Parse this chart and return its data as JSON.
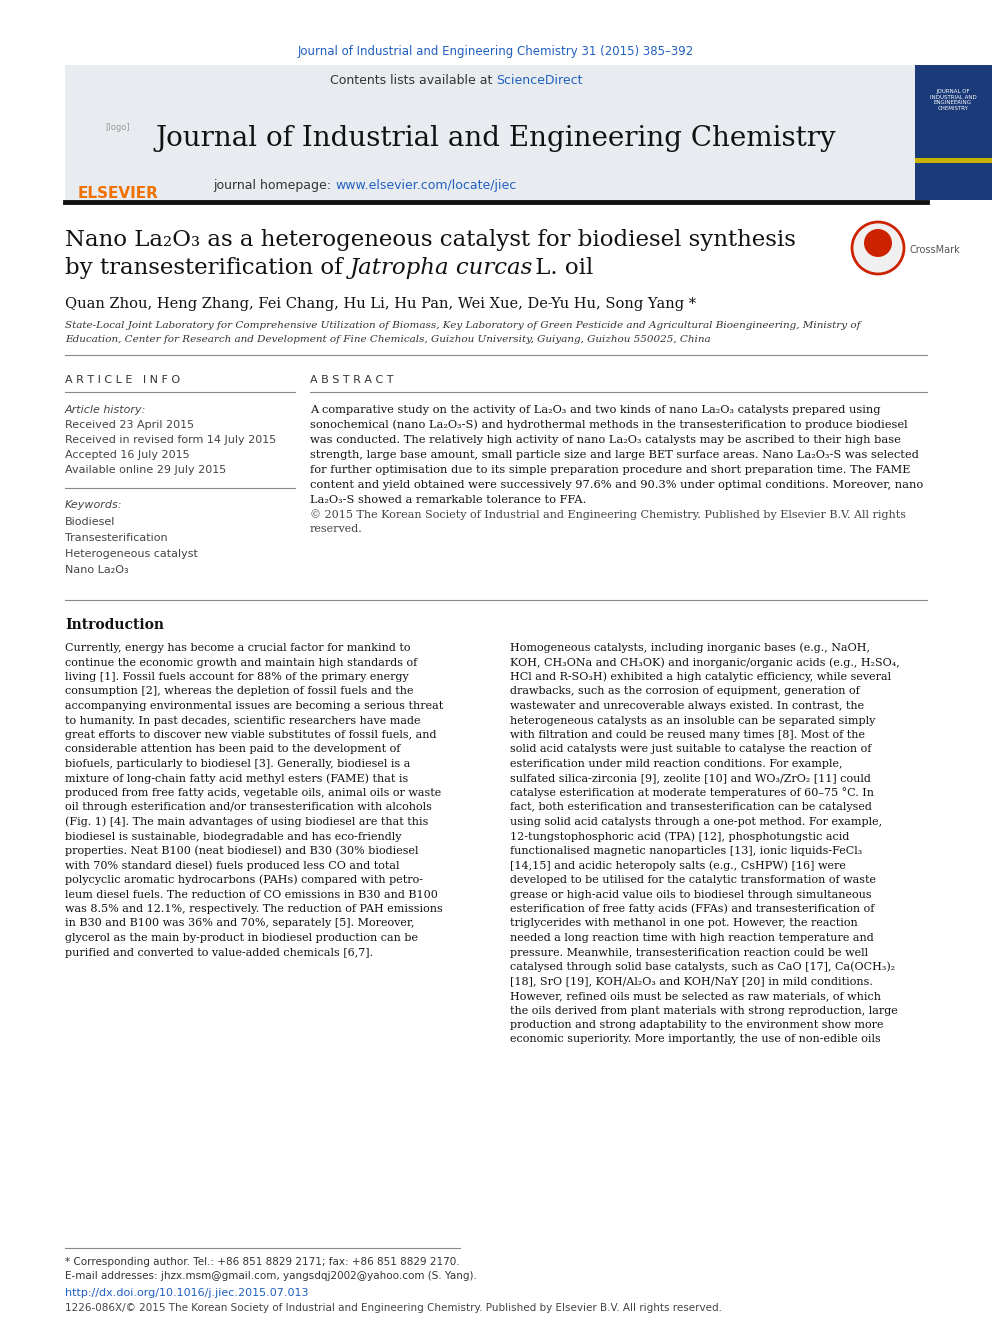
{
  "bg_color": "#ffffff",
  "top_journal_ref": "Journal of Industrial and Engineering Chemistry 31 (2015) 385–392",
  "top_journal_ref_color": "#2060c0",
  "header_bg": "#e8ecf0",
  "header_journal_title": "Journal of Industrial and Engineering Chemistry",
  "header_contents_text": "Contents lists available at ",
  "header_sciencedirect": "ScienceDirect",
  "header_sciencedirect_color": "#2060c0",
  "header_homepage_text": "journal homepage: ",
  "header_homepage_url": "www.elsevier.com/locate/jiec",
  "header_homepage_url_color": "#2060c0",
  "elsevier_color": "#f07000",
  "article_title_line1": "Nano La₂O₃ as a heterogeneous catalyst for biodiesel synthesis",
  "article_title_line2": "by transesterification of ",
  "article_title_italic": "Jatropha curcas",
  "article_title_end": " L. oil",
  "authors": "Quan Zhou, Heng Zhang, Fei Chang, Hu Li, Hu Pan, Wei Xue, De-Yu Hu, Song Yang",
  "affiliation": "State-Local Joint Laboratory for Comprehensive Utilization of Biomass, Key Laboratory of Green Pesticide and Agricultural Bioengineering, Ministry of\nEducation, Center for Research and Development of Fine Chemicals, Guizhou University, Guiyang, Guizhou 550025, China",
  "article_info_title": "A R T I C L E   I N F O",
  "article_history_label": "Article history:",
  "received": "Received 23 April 2015",
  "revised": "Received in revised form 14 July 2015",
  "accepted": "Accepted 16 July 2015",
  "online": "Available online 29 July 2015",
  "keywords_label": "Keywords:",
  "keywords": [
    "Biodiesel",
    "Transesterification",
    "Heterogeneous catalyst",
    "Nano La₂O₃"
  ],
  "abstract_title": "A B S T R A C T",
  "abstract_text": "A comparative study on the activity of La₂O₃ and two kinds of nano La₂O₃ catalysts prepared using\nsonochemical (nano La₂O₃-S) and hydrothermal methods in the transesterification to produce biodiesel\nwas conducted. The relatively high activity of nano La₂O₃ catalysts may be ascribed to their high base\nstrength, large base amount, small particle size and large BET surface areas. Nano La₂O₃-S was selected\nfor further optimisation due to its simple preparation procedure and short preparation time. The FAME\ncontent and yield obtained were successively 97.6% and 90.3% under optimal conditions. Moreover, nano\nLa₂O₃-S showed a remarkable tolerance to FFA.",
  "abstract_copyright": "© 2015 The Korean Society of Industrial and Engineering Chemistry. Published by Elsevier B.V. All rights\nreserved.",
  "intro_title": "Introduction",
  "intro_text_col1": "Currently, energy has become a crucial factor for mankind to\ncontinue the economic growth and maintain high standards of\nliving [1]. Fossil fuels account for 88% of the primary energy\nconsumption [2], whereas the depletion of fossil fuels and the\naccompanying environmental issues are becoming a serious threat\nto humanity. In past decades, scientific researchers have made\ngreat efforts to discover new viable substitutes of fossil fuels, and\nconsiderable attention has been paid to the development of\nbiofuels, particularly to biodiesel [3]. Generally, biodiesel is a\nmixture of long-chain fatty acid methyl esters (FAME) that is\nproduced from free fatty acids, vegetable oils, animal oils or waste\noil through esterification and/or transesterification with alcohols\n(Fig. 1) [4]. The main advantages of using biodiesel are that this\nbiodiesel is sustainable, biodegradable and has eco-friendly\nproperties. Neat B100 (neat biodiesel) and B30 (30% biodiesel\nwith 70% standard diesel) fuels produced less CO and total\npolycyclic aromatic hydrocarbons (PAHs) compared with petro-\nleum diesel fuels. The reduction of CO emissions in B30 and B100\nwas 8.5% and 12.1%, respectively. The reduction of PAH emissions\nin B30 and B100 was 36% and 70%, separately [5]. Moreover,\nglycerol as the main by-product in biodiesel production can be\npurified and converted to value-added chemicals [6,7].",
  "intro_text_col2": "Homogeneous catalysts, including inorganic bases (e.g., NaOH,\nKOH, CH₃ONa and CH₃OK) and inorganic/organic acids (e.g., H₂SO₄,\nHCl and R-SO₃H) exhibited a high catalytic efficiency, while several\ndrawbacks, such as the corrosion of equipment, generation of\nwastewater and unrecoverable always existed. In contrast, the\nheterogeneous catalysts as an insoluble can be separated simply\nwith filtration and could be reused many times [8]. Most of the\nsolid acid catalysts were just suitable to catalyse the reaction of\nesterification under mild reaction conditions. For example,\nsulfated silica-zirconia [9], zeolite [10] and WO₃/ZrO₂ [11] could\ncatalyse esterification at moderate temperatures of 60–75 °C. In\nfact, both esterification and transesterification can be catalysed\nusing solid acid catalysts through a one-pot method. For example,\n12-tungstophosphoric acid (TPA) [12], phosphotungstic acid\nfunctionalised magnetic nanoparticles [13], ionic liquids-FeCl₃\n[14,15] and acidic heteropoly salts (e.g., CsHPW) [16] were\ndeveloped to be utilised for the catalytic transformation of waste\ngrease or high-acid value oils to biodiesel through simultaneous\nesterification of free fatty acids (FFAs) and transesterification of\ntriglycerides with methanol in one pot. However, the reaction\nneeded a long reaction time with high reaction temperature and\npressure. Meanwhile, transesterification reaction could be well\ncatalysed through solid base catalysts, such as CaO [17], Ca(OCH₃)₂\n[18], SrO [19], KOH/Al₂O₃ and KOH/NaY [20] in mild conditions.\nHowever, refined oils must be selected as raw materials, of which\nthe oils derived from plant materials with strong reproduction, large\nproduction and strong adaptability to the environment show more\neconomic superiority. More importantly, the use of non-edible oils",
  "footnote_corresponding": "* Corresponding author. Tel.: +86 851 8829 2171; fax: +86 851 8829 2170.",
  "footnote_email": "E-mail addresses: jhzx.msm@gmail.com, yangsdqj2002@yahoo.com (S. Yang).",
  "footnote_doi": "http://dx.doi.org/10.1016/j.jiec.2015.07.013",
  "footnote_issn": "1226-086X/© 2015 The Korean Society of Industrial and Engineering Chemistry. Published by Elsevier B.V. All rights reserved.",
  "doi_color": "#2060c0",
  "text_color": "#000000",
  "gray_text": "#444444",
  "line_color": "#000000",
  "header_line_color": "#000000"
}
